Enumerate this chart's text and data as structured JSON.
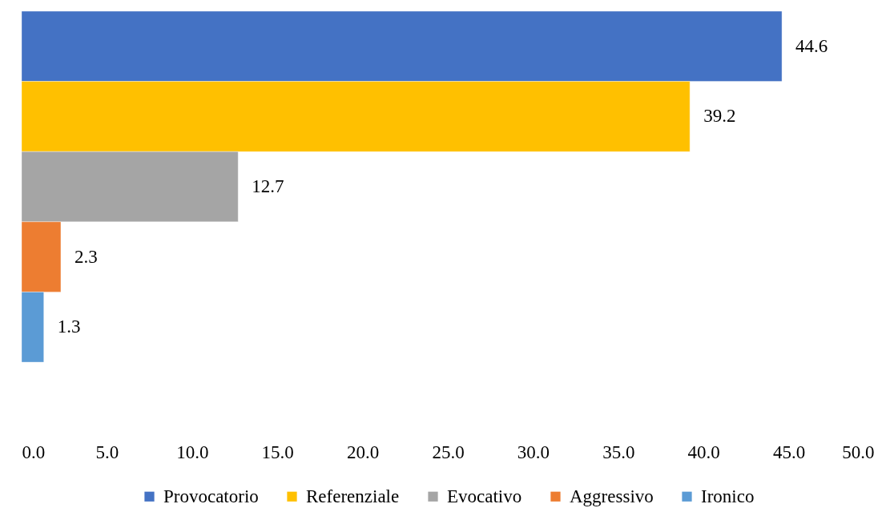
{
  "chart_data": {
    "type": "bar",
    "orientation": "horizontal",
    "categories": [
      null
    ],
    "series": [
      {
        "name": "Provocatorio",
        "color": "#4472c4",
        "values": [
          44.6
        ]
      },
      {
        "name": "Referenziale",
        "color": "#ffc000",
        "values": [
          39.2
        ]
      },
      {
        "name": "Evocativo",
        "color": "#a5a5a5",
        "values": [
          12.7
        ]
      },
      {
        "name": "Aggressivo",
        "color": "#ed7d31",
        "values": [
          2.3
        ]
      },
      {
        "name": "Ironico",
        "color": "#5b9bd5",
        "values": [
          1.3
        ]
      }
    ],
    "xlim": [
      0,
      50
    ],
    "xticks": [
      {
        "value": 0,
        "label": "0.0"
      },
      {
        "value": 5,
        "label": "5.0"
      },
      {
        "value": 10,
        "label": "10.0"
      },
      {
        "value": 15,
        "label": "15.0"
      },
      {
        "value": 20,
        "label": "20.0"
      },
      {
        "value": 25,
        "label": "25.0"
      },
      {
        "value": 30,
        "label": "30.0"
      },
      {
        "value": 35,
        "label": "35.0"
      },
      {
        "value": 40,
        "label": "40.0"
      },
      {
        "value": 45,
        "label": "45.0"
      },
      {
        "value": 50,
        "label": "50.0"
      }
    ],
    "data_labels": true,
    "legend": "bottom"
  }
}
